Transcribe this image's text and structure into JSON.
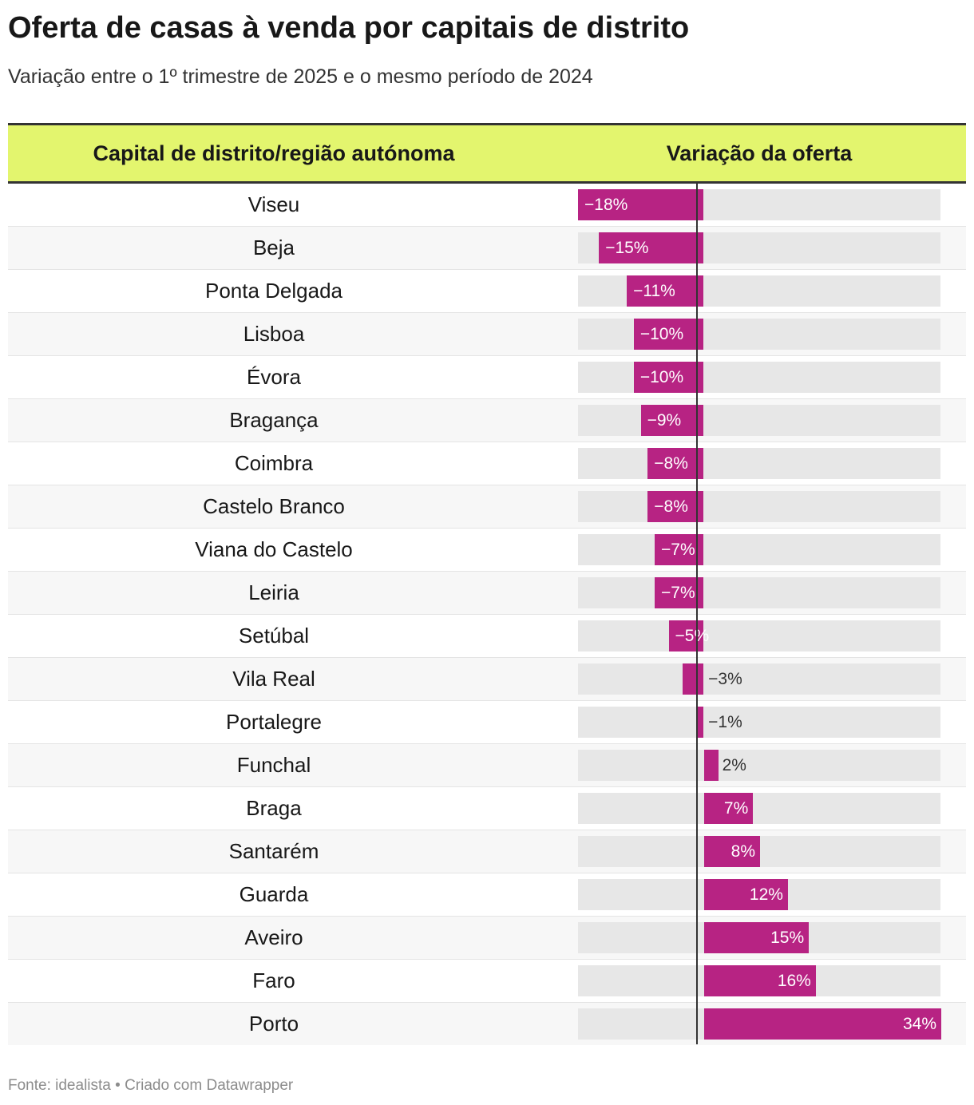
{
  "title": "Oferta de casas à venda por capitais de distrito",
  "subtitle": "Variação entre o 1º trimestre de 2025 e o mesmo período de 2024",
  "footer": "Fonte: idealista • Criado com Datawrapper",
  "colors": {
    "header_bg": "#e3f56e",
    "bar": "#b72383",
    "bar_bg": "#e7e7e7"
  },
  "chart_data": {
    "type": "bar",
    "orientation": "horizontal",
    "columns": [
      "Capital de distrito/região autónoma",
      "Variação da oferta"
    ],
    "xlim": [
      -18,
      34
    ],
    "unit": "%",
    "rows": [
      {
        "name": "Viseu",
        "value": -18,
        "label": "−18%"
      },
      {
        "name": "Beja",
        "value": -15,
        "label": "−15%"
      },
      {
        "name": "Ponta Delgada",
        "value": -11,
        "label": "−11%"
      },
      {
        "name": "Lisboa",
        "value": -10,
        "label": "−10%"
      },
      {
        "name": "Évora",
        "value": -10,
        "label": "−10%"
      },
      {
        "name": "Bragança",
        "value": -9,
        "label": "−9%"
      },
      {
        "name": "Coimbra",
        "value": -8,
        "label": "−8%"
      },
      {
        "name": "Castelo Branco",
        "value": -8,
        "label": "−8%"
      },
      {
        "name": "Viana do Castelo",
        "value": -7,
        "label": "−7%"
      },
      {
        "name": "Leiria",
        "value": -7,
        "label": "−7%"
      },
      {
        "name": "Setúbal",
        "value": -5,
        "label": "−5%"
      },
      {
        "name": "Vila Real",
        "value": -3,
        "label": "−3%"
      },
      {
        "name": "Portalegre",
        "value": -1,
        "label": "−1%"
      },
      {
        "name": "Funchal",
        "value": 2,
        "label": "2%"
      },
      {
        "name": "Braga",
        "value": 7,
        "label": "7%"
      },
      {
        "name": "Santarém",
        "value": 8,
        "label": "8%"
      },
      {
        "name": "Guarda",
        "value": 12,
        "label": "12%"
      },
      {
        "name": "Aveiro",
        "value": 15,
        "label": "15%"
      },
      {
        "name": "Faro",
        "value": 16,
        "label": "16%"
      },
      {
        "name": "Porto",
        "value": 34,
        "label": "34%"
      }
    ]
  }
}
